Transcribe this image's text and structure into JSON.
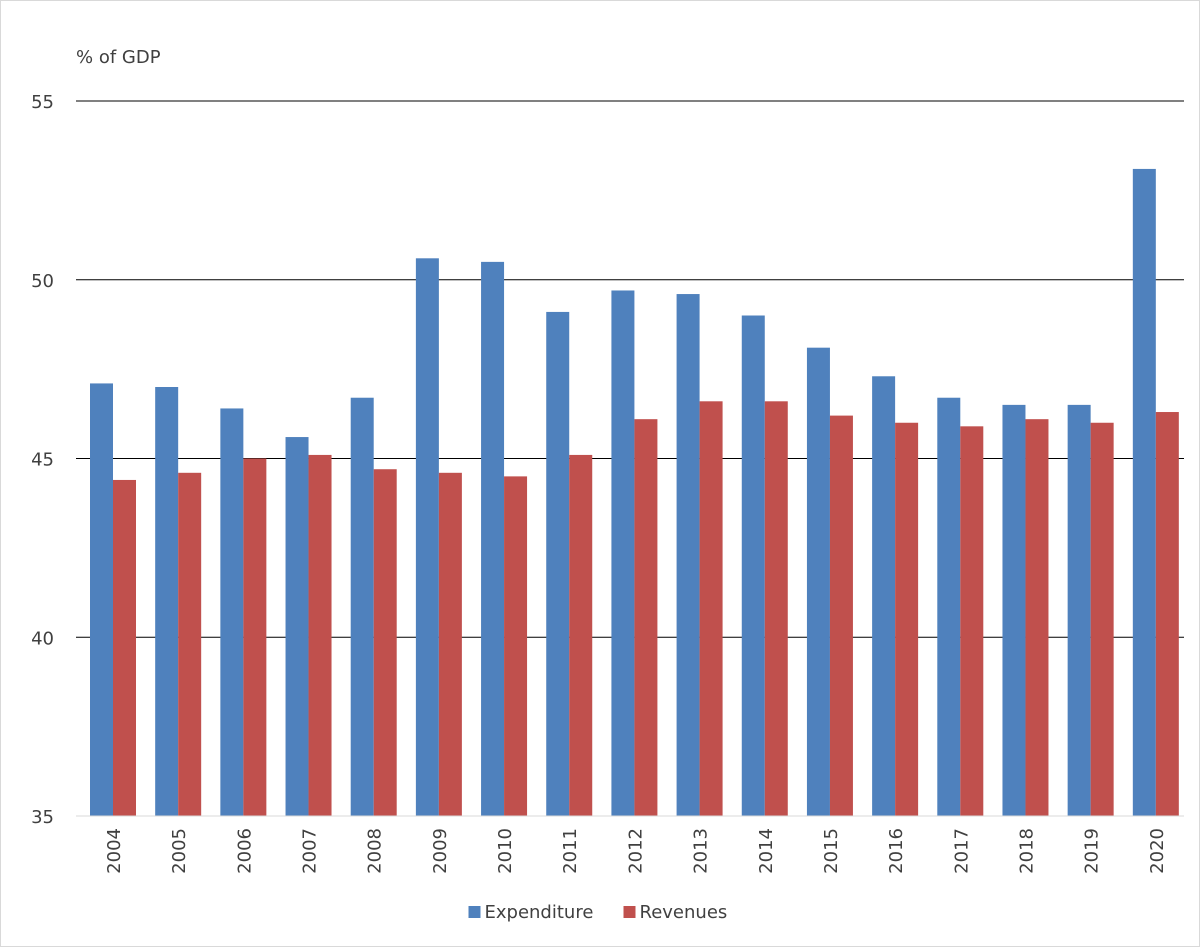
{
  "chart_data": {
    "type": "bar",
    "title": "",
    "xlabel": "",
    "ylabel": "% of GDP",
    "ylim": [
      35,
      55
    ],
    "yticks": [
      35,
      40,
      45,
      50,
      55
    ],
    "grid": true,
    "legend_position": "bottom",
    "categories": [
      "2004",
      "2005",
      "2006",
      "2007",
      "2008",
      "2009",
      "2010",
      "2011",
      "2012",
      "2013",
      "2014",
      "2015",
      "2016",
      "2017",
      "2018",
      "2019",
      "2020"
    ],
    "series": [
      {
        "name": "Expenditure",
        "color": "#4f81bd",
        "values": [
          47.1,
          47.0,
          46.4,
          45.6,
          46.7,
          50.6,
          50.5,
          49.1,
          49.7,
          49.6,
          49.0,
          48.1,
          47.3,
          46.7,
          46.5,
          46.5,
          53.1
        ]
      },
      {
        "name": "Revenues",
        "color": "#c0504d",
        "values": [
          44.4,
          44.6,
          45.0,
          45.1,
          44.7,
          44.6,
          44.5,
          45.1,
          46.1,
          46.6,
          46.6,
          46.2,
          46.0,
          45.9,
          46.1,
          46.0,
          46.3
        ]
      }
    ]
  }
}
